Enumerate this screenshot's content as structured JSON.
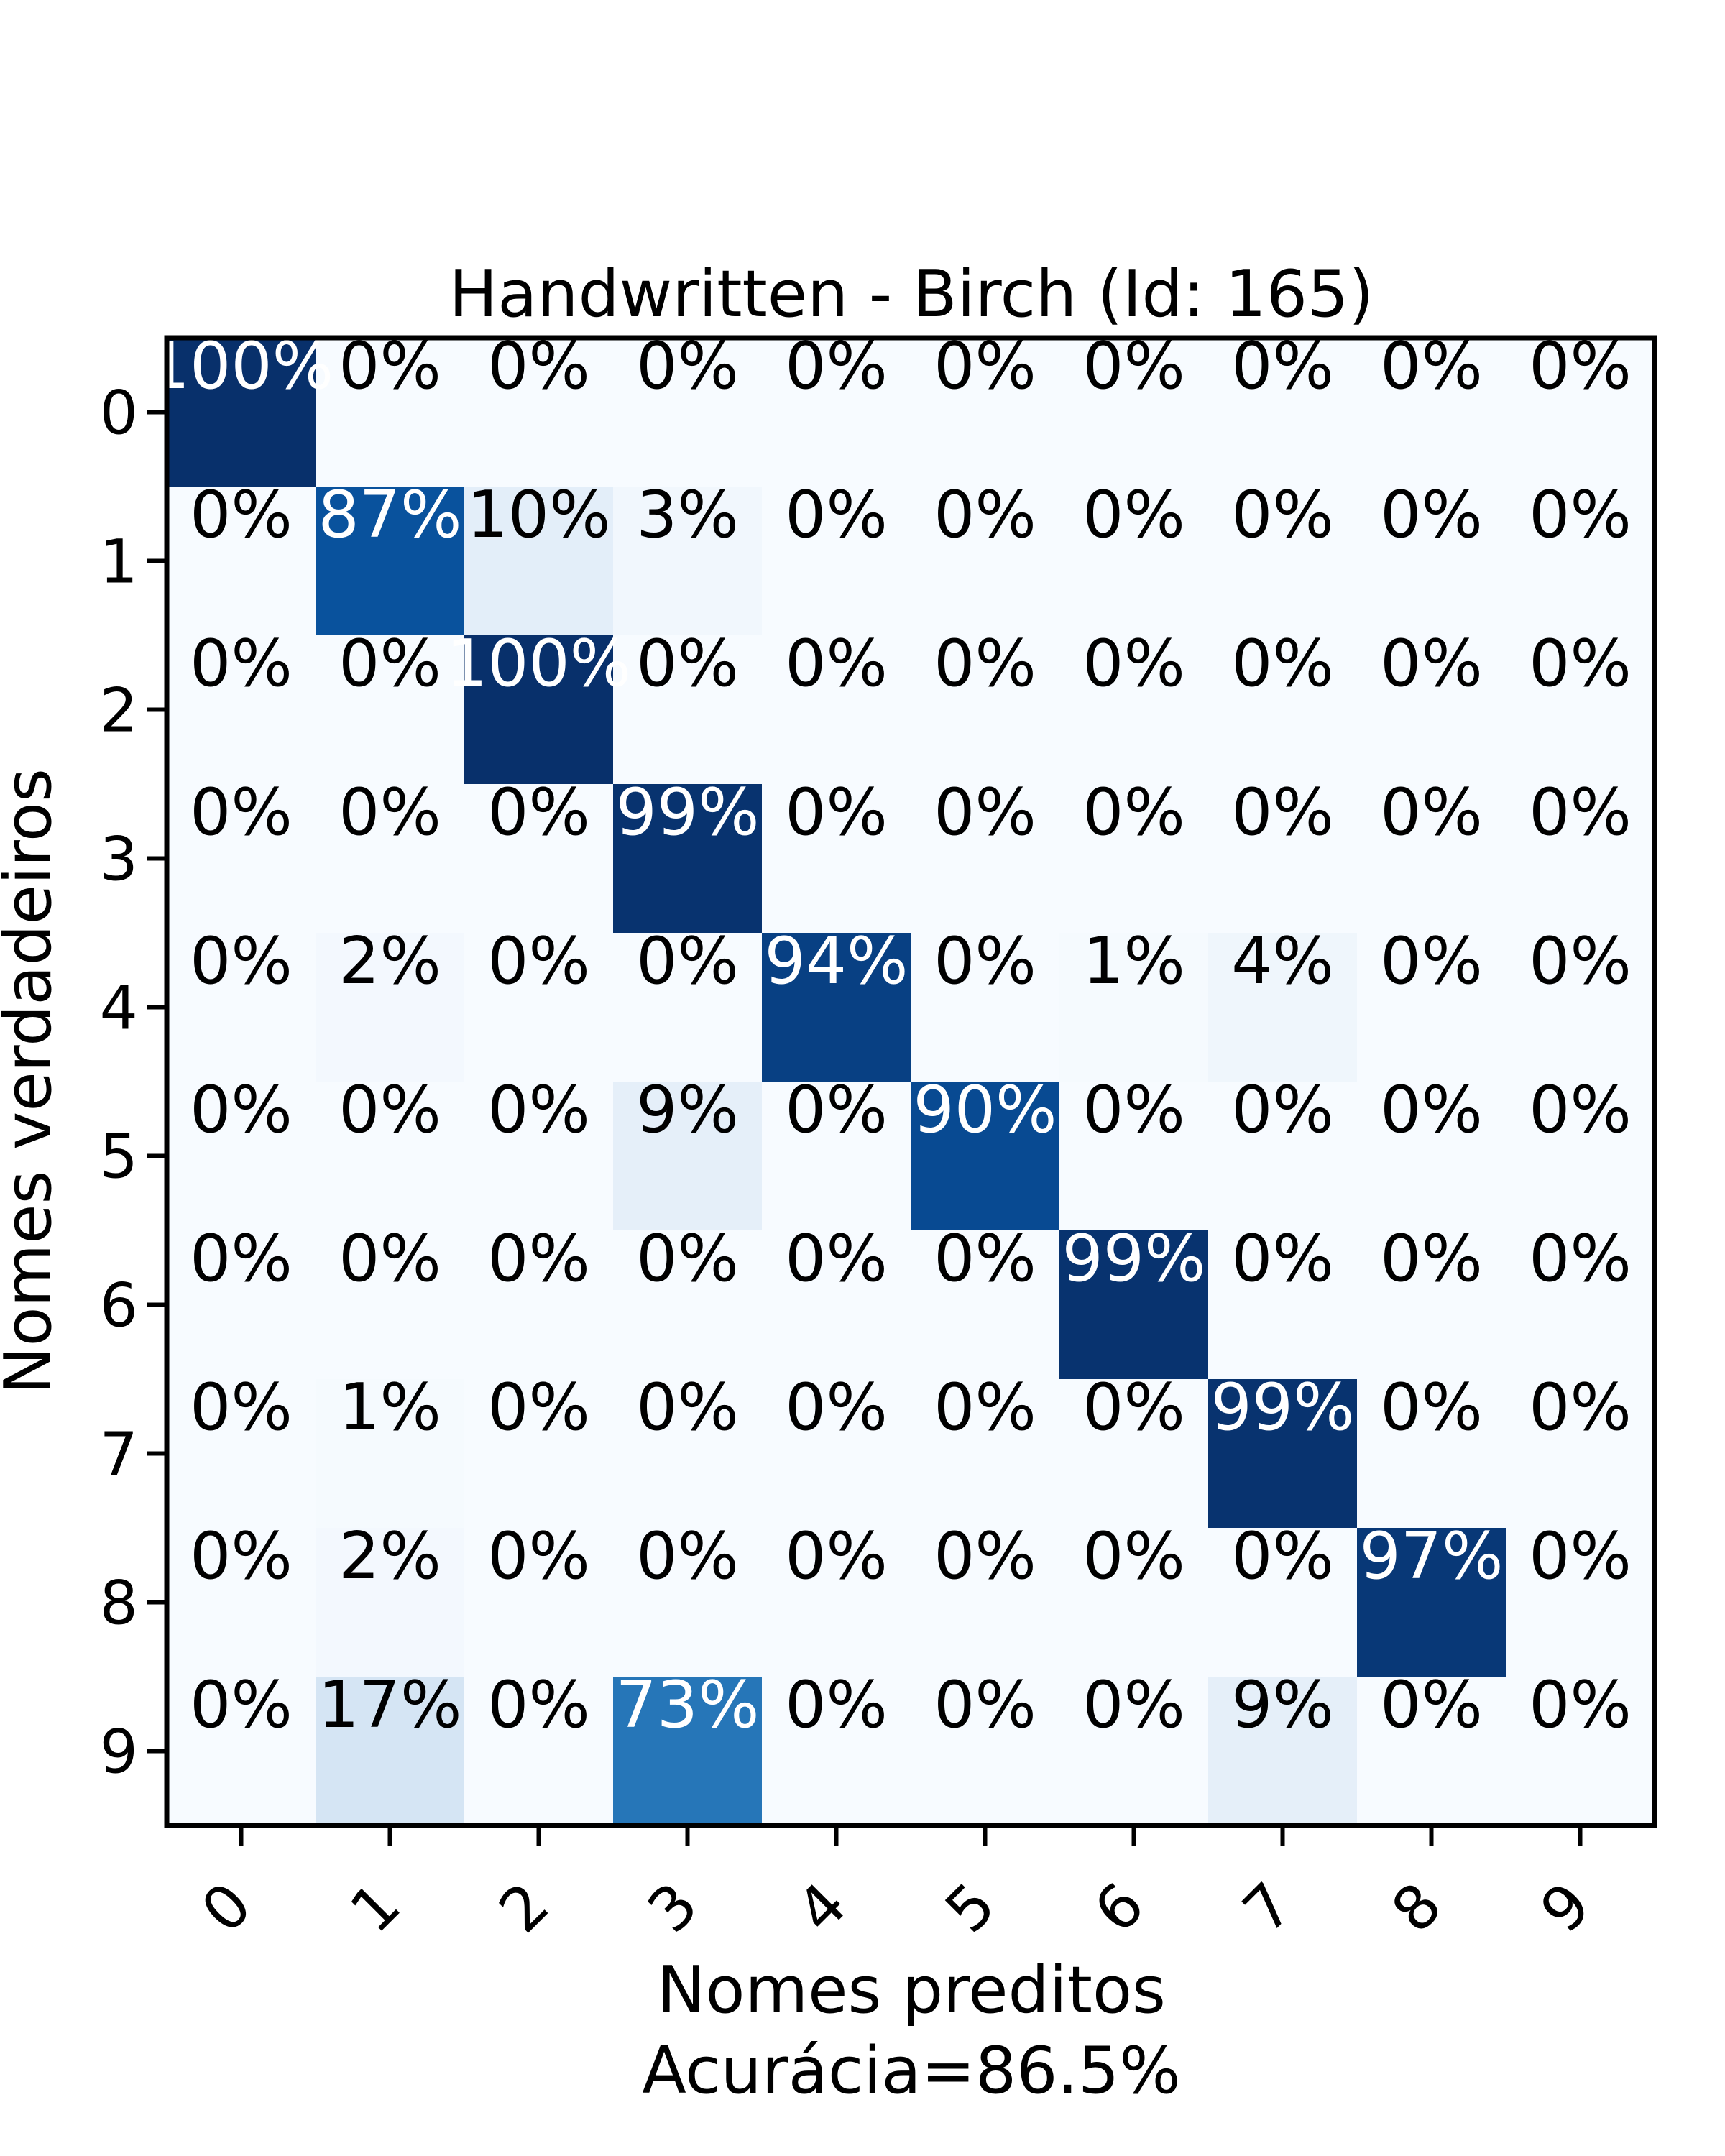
{
  "chart_data": {
    "type": "heatmap",
    "title": "Handwritten - Birch (Id: 165)",
    "xlabel": "Nomes preditos",
    "xlabel_secondary": "Acurácia=86.5%",
    "ylabel": "Nomes verdadeiros",
    "x_categories": [
      "0",
      "1",
      "2",
      "3",
      "4",
      "5",
      "6",
      "7",
      "8",
      "9"
    ],
    "y_categories": [
      "0",
      "1",
      "2",
      "3",
      "4",
      "5",
      "6",
      "7",
      "8",
      "9"
    ],
    "colormap": "Blues",
    "vmin": 0,
    "vmax": 100,
    "values": [
      [
        100,
        0,
        0,
        0,
        0,
        0,
        0,
        0,
        0,
        0
      ],
      [
        0,
        87,
        10,
        3,
        0,
        0,
        0,
        0,
        0,
        0
      ],
      [
        0,
        0,
        100,
        0,
        0,
        0,
        0,
        0,
        0,
        0
      ],
      [
        0,
        0,
        0,
        99,
        0,
        0,
        0,
        0,
        0,
        0
      ],
      [
        0,
        2,
        0,
        0,
        94,
        0,
        1,
        4,
        0,
        0
      ],
      [
        0,
        0,
        0,
        9,
        0,
        90,
        0,
        0,
        0,
        0
      ],
      [
        0,
        0,
        0,
        0,
        0,
        0,
        99,
        0,
        0,
        0
      ],
      [
        0,
        1,
        0,
        0,
        0,
        0,
        0,
        99,
        0,
        0
      ],
      [
        0,
        2,
        0,
        0,
        0,
        0,
        0,
        0,
        97,
        0
      ],
      [
        0,
        17,
        0,
        73,
        0,
        0,
        0,
        9,
        0,
        0
      ]
    ],
    "labels": [
      [
        "100%",
        "0%",
        "0%",
        "0%",
        "0%",
        "0%",
        "0%",
        "0%",
        "0%",
        "0%"
      ],
      [
        "0%",
        "87%",
        "10%",
        "3%",
        "0%",
        "0%",
        "0%",
        "0%",
        "0%",
        "0%"
      ],
      [
        "0%",
        "0%",
        "100%",
        "0%",
        "0%",
        "0%",
        "0%",
        "0%",
        "0%",
        "0%"
      ],
      [
        "0%",
        "0%",
        "0%",
        "99%",
        "0%",
        "0%",
        "0%",
        "0%",
        "0%",
        "0%"
      ],
      [
        "0%",
        "2%",
        "0%",
        "0%",
        "94%",
        "0%",
        "1%",
        "4%",
        "0%",
        "0%"
      ],
      [
        "0%",
        "0%",
        "0%",
        "9%",
        "0%",
        "90%",
        "0%",
        "0%",
        "0%",
        "0%"
      ],
      [
        "0%",
        "0%",
        "0%",
        "0%",
        "0%",
        "0%",
        "99%",
        "0%",
        "0%",
        "0%"
      ],
      [
        "0%",
        "1%",
        "0%",
        "0%",
        "0%",
        "0%",
        "0%",
        "99%",
        "0%",
        "0%"
      ],
      [
        "0%",
        "2%",
        "0%",
        "0%",
        "0%",
        "0%",
        "0%",
        "0%",
        "97%",
        "0%"
      ],
      [
        "0%",
        "17%",
        "0%",
        "73%",
        "0%",
        "0%",
        "0%",
        "9%",
        "0%",
        "0%"
      ]
    ],
    "grid": false,
    "legend": "none"
  }
}
